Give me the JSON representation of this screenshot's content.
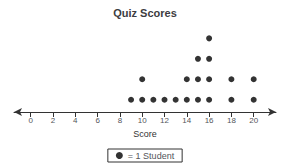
{
  "chart_data": {
    "type": "dot",
    "title": "Quiz Scores",
    "xlabel": "Score",
    "x": [
      9,
      10,
      11,
      12,
      13,
      14,
      15,
      16,
      18,
      20
    ],
    "series": [
      {
        "name": "= 1 Student",
        "color": "#000000",
        "values": [
          1,
          2,
          1,
          1,
          1,
          2,
          3,
          4,
          2,
          2
        ]
      }
    ],
    "xlim": [
      -1.5,
      22
    ],
    "xticks": [
      0,
      2,
      4,
      6,
      8,
      10,
      12,
      14,
      16,
      18,
      20
    ],
    "legend": "bottom",
    "grid": false,
    "tick_labels": "x"
  }
}
